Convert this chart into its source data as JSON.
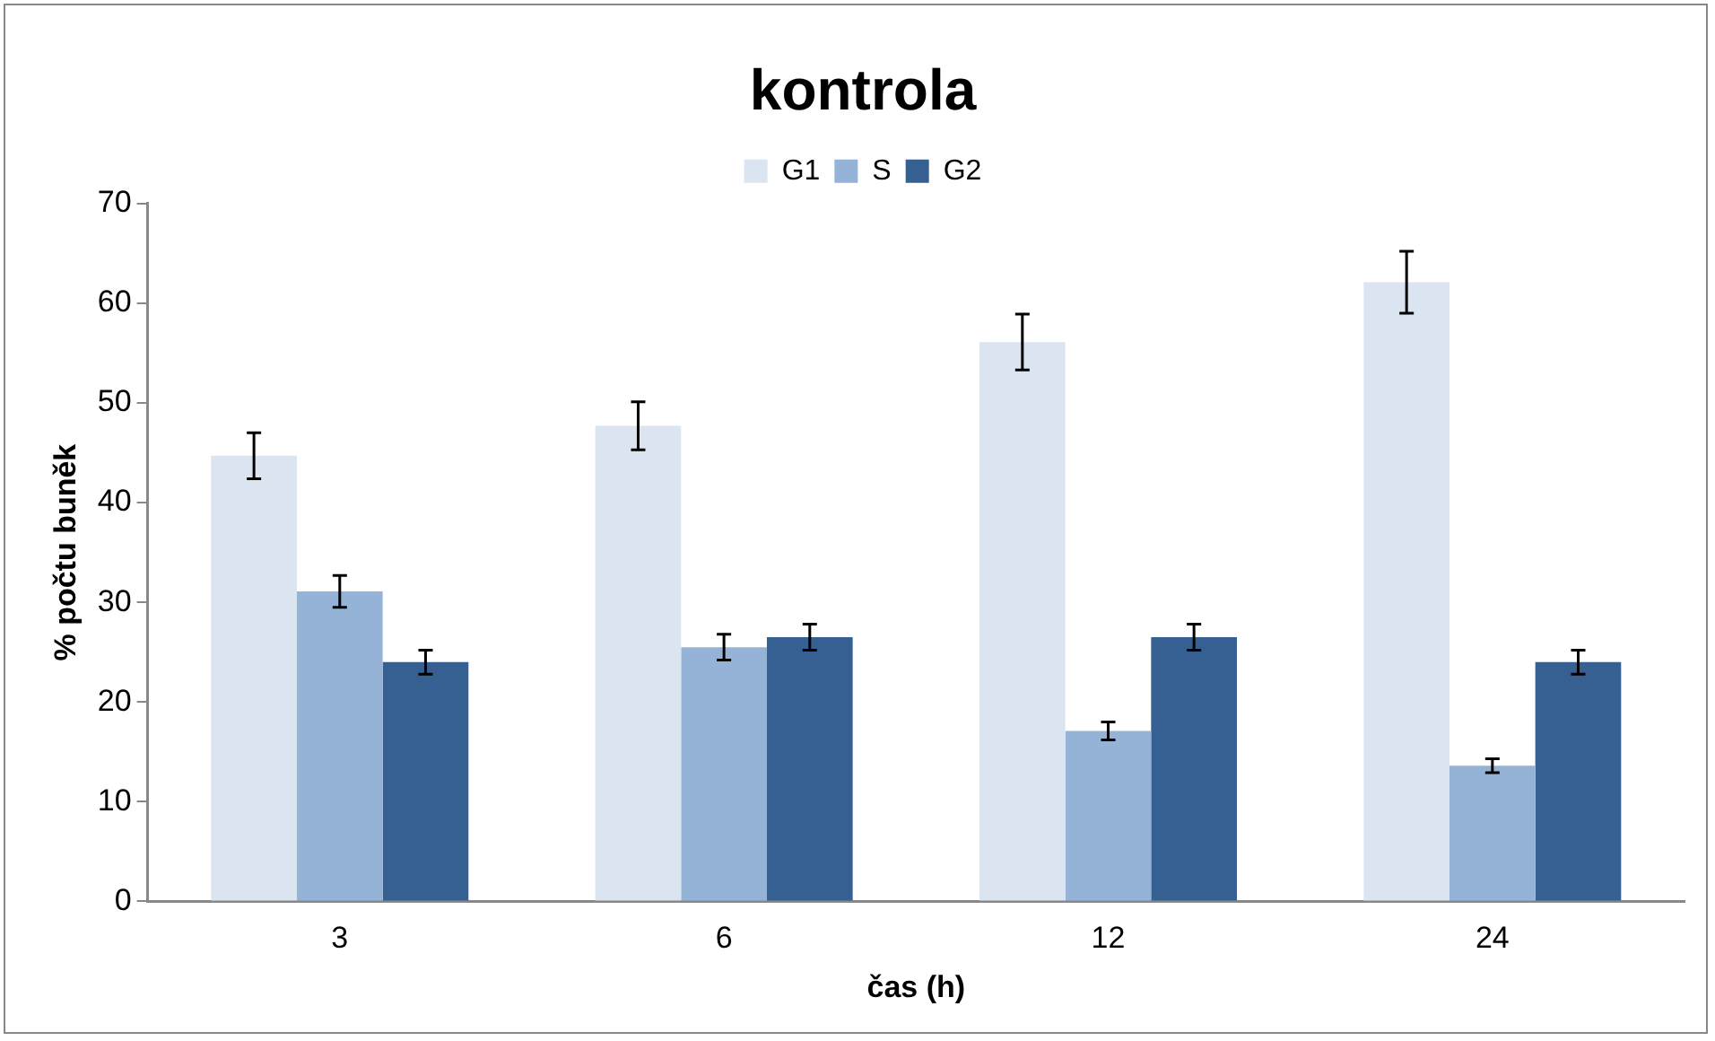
{
  "chart_data": {
    "type": "bar",
    "title": "kontrola",
    "xlabel": "čas (h)",
    "ylabel": "% počtu buněk",
    "categories": [
      "3",
      "6",
      "12",
      "24"
    ],
    "series": [
      {
        "name": "G1",
        "color": "#dbe5f1",
        "values": [
          44.7,
          47.7,
          56.1,
          62.1
        ],
        "errors": [
          2.3,
          2.4,
          2.8,
          3.1
        ]
      },
      {
        "name": "S",
        "color": "#95b3d7",
        "values": [
          31.1,
          25.5,
          17.1,
          13.6
        ],
        "errors": [
          1.6,
          1.3,
          0.9,
          0.7
        ]
      },
      {
        "name": "G2",
        "color": "#366092",
        "values": [
          24.0,
          26.5,
          26.5,
          24.0
        ],
        "errors": [
          1.2,
          1.3,
          1.3,
          1.2
        ]
      }
    ],
    "ylim": [
      0,
      70
    ],
    "yticks": [
      0,
      10,
      20,
      30,
      40,
      50,
      60,
      70
    ],
    "grid": false,
    "legend": "top"
  }
}
